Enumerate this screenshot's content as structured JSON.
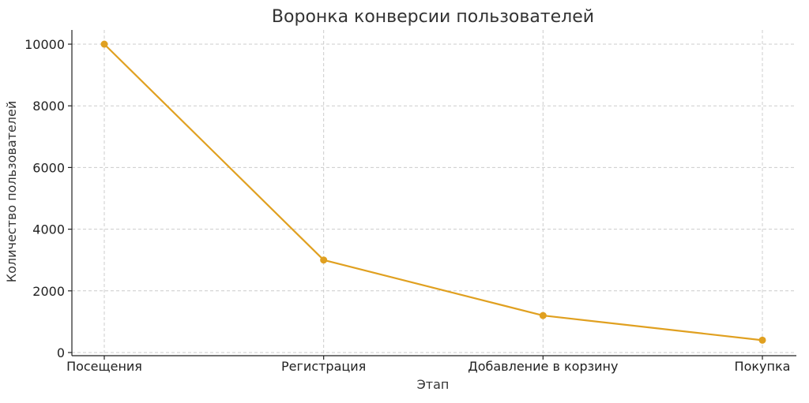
{
  "chart_data": {
    "type": "line",
    "title": "Воронка конверсии пользователей",
    "xlabel": "Этап",
    "ylabel": "Количество пользователей",
    "categories": [
      "Посещения",
      "Регистрация",
      "Добавление в корзину",
      "Покупка"
    ],
    "series": [
      {
        "values": [
          10000,
          3000,
          1200,
          400
        ],
        "color": "#e0a020"
      }
    ],
    "ylim": [
      0,
      10000
    ],
    "yticks": [
      0,
      2000,
      4000,
      6000,
      8000,
      10000
    ],
    "grid": true,
    "markers": true
  }
}
